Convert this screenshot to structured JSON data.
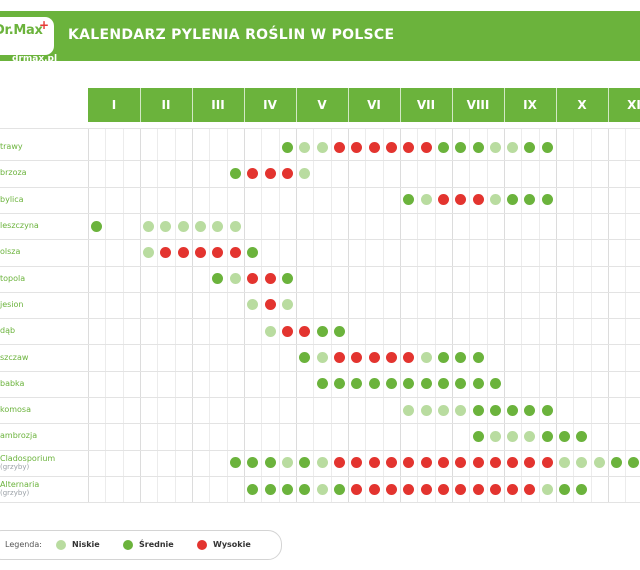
{
  "header": {
    "logo_text": "Dr.Max",
    "logo_plus": "+",
    "logo_url": "drmax.pl",
    "title": "KALENDARZ PYLENIA ROŚLIN W POLSCE"
  },
  "colors": {
    "brand_green": "#6bb33c",
    "low": "#b9dca0",
    "medium": "#6bb33c",
    "high": "#e3342f"
  },
  "legend": {
    "title": "Legenda:",
    "items": [
      {
        "label": "Niskie",
        "level": 1
      },
      {
        "label": "Średnie",
        "level": 2
      },
      {
        "label": "Wysokie",
        "level": 3
      }
    ]
  },
  "chart_data": {
    "type": "heatmap",
    "title": "KALENDARZ PYLENIA ROŚLIN W POLSCE",
    "months": [
      "I",
      "II",
      "III",
      "IV",
      "V",
      "VI",
      "VII",
      "VIII",
      "IX",
      "X",
      "XI"
    ],
    "slots_per_month": 3,
    "levels": {
      "0": "brak",
      "1": "Niskie",
      "2": "Średnie",
      "3": "Wysokie"
    },
    "rows": [
      {
        "name": "trawy",
        "sub": "",
        "values": [
          0,
          0,
          0,
          0,
          0,
          0,
          0,
          0,
          0,
          0,
          0,
          2,
          1,
          1,
          3,
          3,
          3,
          3,
          3,
          3,
          2,
          2,
          2,
          1,
          1,
          2,
          2,
          0,
          0,
          0,
          0,
          0,
          0
        ]
      },
      {
        "name": "brzoza",
        "sub": "",
        "values": [
          0,
          0,
          0,
          0,
          0,
          0,
          0,
          0,
          2,
          3,
          3,
          3,
          1,
          0,
          0,
          0,
          0,
          0,
          0,
          0,
          0,
          0,
          0,
          0,
          0,
          0,
          0,
          0,
          0,
          0,
          0,
          0,
          0
        ]
      },
      {
        "name": "bylica",
        "sub": "",
        "values": [
          0,
          0,
          0,
          0,
          0,
          0,
          0,
          0,
          0,
          0,
          0,
          0,
          0,
          0,
          0,
          0,
          0,
          0,
          2,
          1,
          3,
          3,
          3,
          1,
          2,
          2,
          2,
          0,
          0,
          0,
          0,
          0,
          0
        ]
      },
      {
        "name": "leszczyna",
        "sub": "",
        "values": [
          2,
          0,
          0,
          1,
          1,
          1,
          1,
          1,
          1,
          0,
          0,
          0,
          0,
          0,
          0,
          0,
          0,
          0,
          0,
          0,
          0,
          0,
          0,
          0,
          0,
          0,
          0,
          0,
          0,
          0,
          0,
          0,
          0
        ]
      },
      {
        "name": "olsza",
        "sub": "",
        "values": [
          0,
          0,
          0,
          1,
          3,
          3,
          3,
          3,
          3,
          2,
          0,
          0,
          0,
          0,
          0,
          0,
          0,
          0,
          0,
          0,
          0,
          0,
          0,
          0,
          0,
          0,
          0,
          0,
          0,
          0,
          0,
          0,
          0
        ]
      },
      {
        "name": "topola",
        "sub": "",
        "values": [
          0,
          0,
          0,
          0,
          0,
          0,
          0,
          2,
          1,
          3,
          3,
          2,
          0,
          0,
          0,
          0,
          0,
          0,
          0,
          0,
          0,
          0,
          0,
          0,
          0,
          0,
          0,
          0,
          0,
          0,
          0,
          0,
          0
        ]
      },
      {
        "name": "jesion",
        "sub": "",
        "values": [
          0,
          0,
          0,
          0,
          0,
          0,
          0,
          0,
          0,
          1,
          3,
          1,
          0,
          0,
          0,
          0,
          0,
          0,
          0,
          0,
          0,
          0,
          0,
          0,
          0,
          0,
          0,
          0,
          0,
          0,
          0,
          0,
          0
        ]
      },
      {
        "name": "dąb",
        "sub": "",
        "values": [
          0,
          0,
          0,
          0,
          0,
          0,
          0,
          0,
          0,
          0,
          1,
          3,
          3,
          2,
          2,
          0,
          0,
          0,
          0,
          0,
          0,
          0,
          0,
          0,
          0,
          0,
          0,
          0,
          0,
          0,
          0,
          0,
          0
        ]
      },
      {
        "name": "szczaw",
        "sub": "",
        "values": [
          0,
          0,
          0,
          0,
          0,
          0,
          0,
          0,
          0,
          0,
          0,
          0,
          2,
          1,
          3,
          3,
          3,
          3,
          3,
          1,
          2,
          2,
          2,
          0,
          0,
          0,
          0,
          0,
          0,
          0,
          0,
          0,
          0
        ]
      },
      {
        "name": "babka",
        "sub": "",
        "values": [
          0,
          0,
          0,
          0,
          0,
          0,
          0,
          0,
          0,
          0,
          0,
          0,
          0,
          2,
          2,
          2,
          2,
          2,
          2,
          2,
          2,
          2,
          2,
          2,
          0,
          0,
          0,
          0,
          0,
          0,
          0,
          0,
          0
        ]
      },
      {
        "name": "komosa",
        "sub": "",
        "values": [
          0,
          0,
          0,
          0,
          0,
          0,
          0,
          0,
          0,
          0,
          0,
          0,
          0,
          0,
          0,
          0,
          0,
          0,
          1,
          1,
          1,
          1,
          2,
          2,
          2,
          2,
          2,
          0,
          0,
          0,
          0,
          0,
          0
        ]
      },
      {
        "name": "ambrozja",
        "sub": "",
        "values": [
          0,
          0,
          0,
          0,
          0,
          0,
          0,
          0,
          0,
          0,
          0,
          0,
          0,
          0,
          0,
          0,
          0,
          0,
          0,
          0,
          0,
          0,
          2,
          1,
          1,
          1,
          2,
          2,
          2,
          0,
          0,
          0,
          0
        ]
      },
      {
        "name": "Cladosporium",
        "sub": "(grzyby)",
        "values": [
          0,
          0,
          0,
          0,
          0,
          0,
          0,
          0,
          2,
          2,
          2,
          1,
          2,
          1,
          3,
          3,
          3,
          3,
          3,
          3,
          3,
          3,
          3,
          3,
          3,
          3,
          3,
          1,
          1,
          1,
          2,
          2,
          2
        ]
      },
      {
        "name": "Alternaria",
        "sub": "(grzyby)",
        "values": [
          0,
          0,
          0,
          0,
          0,
          0,
          0,
          0,
          0,
          2,
          2,
          2,
          2,
          1,
          2,
          3,
          3,
          3,
          3,
          3,
          3,
          3,
          3,
          3,
          3,
          3,
          1,
          2,
          2,
          0,
          0,
          0,
          0
        ]
      }
    ]
  }
}
